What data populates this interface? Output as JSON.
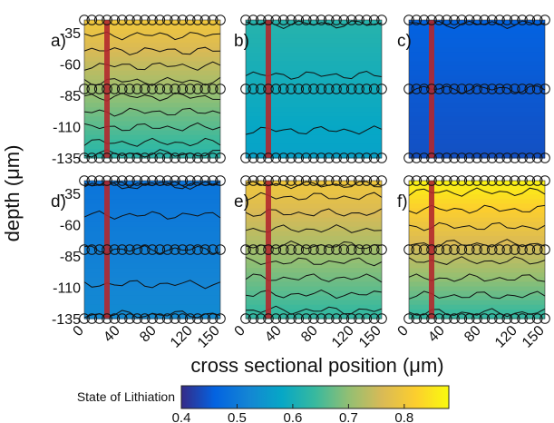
{
  "chart_data": {
    "type": "heatmap",
    "description_labels": {
      "ylabel": "depth (μm)",
      "xlabel": "cross sectional position (μm)",
      "colorbar_label": "State of Lithiation"
    },
    "xlim": [
      0,
      150
    ],
    "ylim": [
      -135,
      -25
    ],
    "x_ticks": [
      0,
      40,
      80,
      120,
      150
    ],
    "y_ticks": [
      -35,
      -60,
      -85,
      -110,
      -135
    ],
    "colorbar": {
      "range": [
        0.4,
        0.88
      ],
      "ticks": [
        0.4,
        0.5,
        0.6,
        0.7,
        0.8
      ],
      "colormap": "parula"
    },
    "measurement_rows_depth": [
      -25,
      -80,
      -135
    ],
    "measurement_x_positions": [
      0,
      8.3,
      16.7,
      25,
      33.3,
      41.7,
      50,
      58.3,
      66.7,
      75,
      83.3,
      91.7,
      100,
      108.3,
      116.7,
      125,
      133.3,
      141.7,
      150
    ],
    "red_line_x": 25,
    "panels": [
      {
        "label": "a)",
        "top_value": 0.8,
        "bottom_value": 0.62,
        "levels": [
          0.62,
          0.64,
          0.66,
          0.68,
          0.7,
          0.72,
          0.74,
          0.76,
          0.78
        ]
      },
      {
        "label": "b)",
        "top_value": 0.62,
        "bottom_value": 0.57,
        "levels": [
          0.58,
          0.6,
          0.62
        ]
      },
      {
        "label": "c)",
        "top_value": 0.46,
        "bottom_value": 0.44,
        "levels": [
          0.45,
          0.46
        ]
      },
      {
        "label": "d)",
        "top_value": 0.49,
        "bottom_value": 0.53,
        "levels": [
          0.48,
          0.49,
          0.5,
          0.51,
          0.52,
          0.53
        ]
      },
      {
        "label": "e)",
        "top_value": 0.8,
        "bottom_value": 0.63,
        "levels": [
          0.64,
          0.66,
          0.68,
          0.7,
          0.72,
          0.74,
          0.76,
          0.78,
          0.8
        ]
      },
      {
        "label": "f)",
        "top_value": 0.87,
        "bottom_value": 0.63,
        "levels": [
          0.64,
          0.67,
          0.7,
          0.73,
          0.76,
          0.79,
          0.82,
          0.85
        ]
      }
    ]
  }
}
